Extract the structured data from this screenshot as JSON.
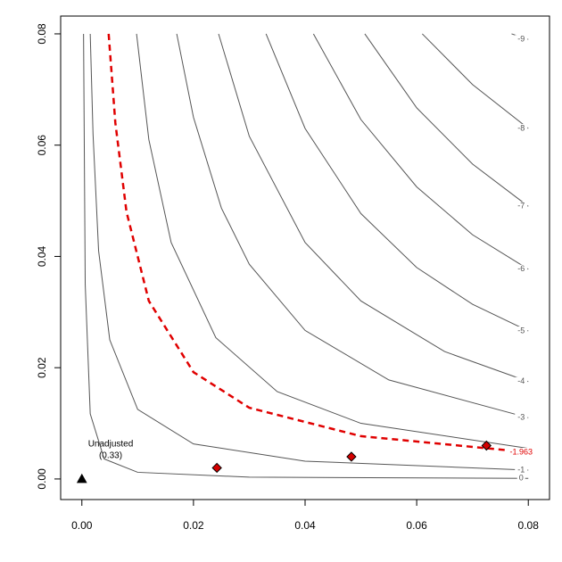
{
  "chart_data": {
    "type": "contour",
    "xlim": [
      -0.0038,
      0.0838
    ],
    "ylim": [
      -0.0037,
      0.0832
    ],
    "xticks": [
      {
        "value": 0,
        "label": "0.00"
      },
      {
        "value": 0.02,
        "label": "0.02"
      },
      {
        "value": 0.04,
        "label": "0.04"
      },
      {
        "value": 0.06,
        "label": "0.06"
      },
      {
        "value": 0.08,
        "label": "0.08"
      }
    ],
    "yticks": [
      {
        "value": 0,
        "label": "0.00"
      },
      {
        "value": 0.02,
        "label": "0.02"
      },
      {
        "value": 0.04,
        "label": "0.04"
      },
      {
        "value": 0.06,
        "label": "0.06"
      },
      {
        "value": 0.08,
        "label": "0.08"
      }
    ],
    "series": [
      {
        "name": "0",
        "color": "#555555",
        "x": [
          0.0003,
          0.0006,
          0.0015,
          0.004,
          0.01,
          0.03,
          0.08
        ],
        "y": [
          0.08,
          0.035,
          0.0117,
          0.0036,
          0.0012,
          0.00032,
          0.0001
        ]
      },
      {
        "name": "-1",
        "color": "#555555",
        "x": [
          0.0015,
          0.002,
          0.003,
          0.005,
          0.01,
          0.02,
          0.04,
          0.08
        ],
        "y": [
          0.08,
          0.062,
          0.041,
          0.025,
          0.0125,
          0.0063,
          0.0032,
          0.0016
        ]
      },
      {
        "color": "#555555",
        "x": [
          0.0098,
          0.012,
          0.016,
          0.024,
          0.035,
          0.05,
          0.08
        ],
        "y": [
          0.08,
          0.061,
          0.0425,
          0.0254,
          0.0157,
          0.01,
          0.0055
        ]
      },
      {
        "name": "-3",
        "color": "#555555",
        "x": [
          0.017,
          0.02,
          0.025,
          0.03,
          0.04,
          0.055,
          0.08
        ],
        "y": [
          0.08,
          0.065,
          0.0487,
          0.0386,
          0.0267,
          0.0178,
          0.011
        ]
      },
      {
        "name": "-4",
        "color": "#555555",
        "x": [
          0.0245,
          0.03,
          0.04,
          0.05,
          0.065,
          0.08
        ],
        "y": [
          0.08,
          0.0616,
          0.0425,
          0.032,
          0.0229,
          0.0175
        ]
      },
      {
        "name": "-5",
        "color": "#555555",
        "x": [
          0.033,
          0.04,
          0.05,
          0.06,
          0.07,
          0.08
        ],
        "y": [
          0.08,
          0.063,
          0.0477,
          0.038,
          0.0314,
          0.0266
        ]
      },
      {
        "name": "-6",
        "color": "#555555",
        "x": [
          0.0415,
          0.05,
          0.06,
          0.07,
          0.08
        ],
        "y": [
          0.08,
          0.0646,
          0.0525,
          0.0439,
          0.0377
        ]
      },
      {
        "name": "-7",
        "color": "#555555",
        "x": [
          0.0507,
          0.06,
          0.07,
          0.08
        ],
        "y": [
          0.08,
          0.0667,
          0.0566,
          0.049
        ]
      },
      {
        "name": "-8",
        "color": "#555555",
        "x": [
          0.061,
          0.07,
          0.08
        ],
        "y": [
          0.08,
          0.0709,
          0.063
        ]
      },
      {
        "name": "-9",
        "color": "#555555",
        "x": [
          0.077,
          0.08
        ],
        "y": [
          0.08,
          0.079
        ]
      },
      {
        "name": "-1.963",
        "color": "#e00000",
        "dashed": true,
        "x": [
          0.0048,
          0.006,
          0.008,
          0.012,
          0.02,
          0.03,
          0.05,
          0.08
        ],
        "y": [
          0.08,
          0.064,
          0.048,
          0.032,
          0.0192,
          0.0128,
          0.0077,
          0.0048
        ]
      }
    ],
    "points": [
      {
        "shape": "triangle",
        "color": "#000000",
        "x": 0,
        "y": 0
      },
      {
        "shape": "diamond",
        "color": "#d40000",
        "x": 0.0242,
        "y": 0.002
      },
      {
        "shape": "diamond",
        "color": "#d40000",
        "x": 0.0483,
        "y": 0.004
      },
      {
        "shape": "diamond",
        "color": "#d40000",
        "x": 0.0725,
        "y": 0.006
      }
    ],
    "annotation": [
      "Unadjusted",
      "(0.33)"
    ]
  }
}
